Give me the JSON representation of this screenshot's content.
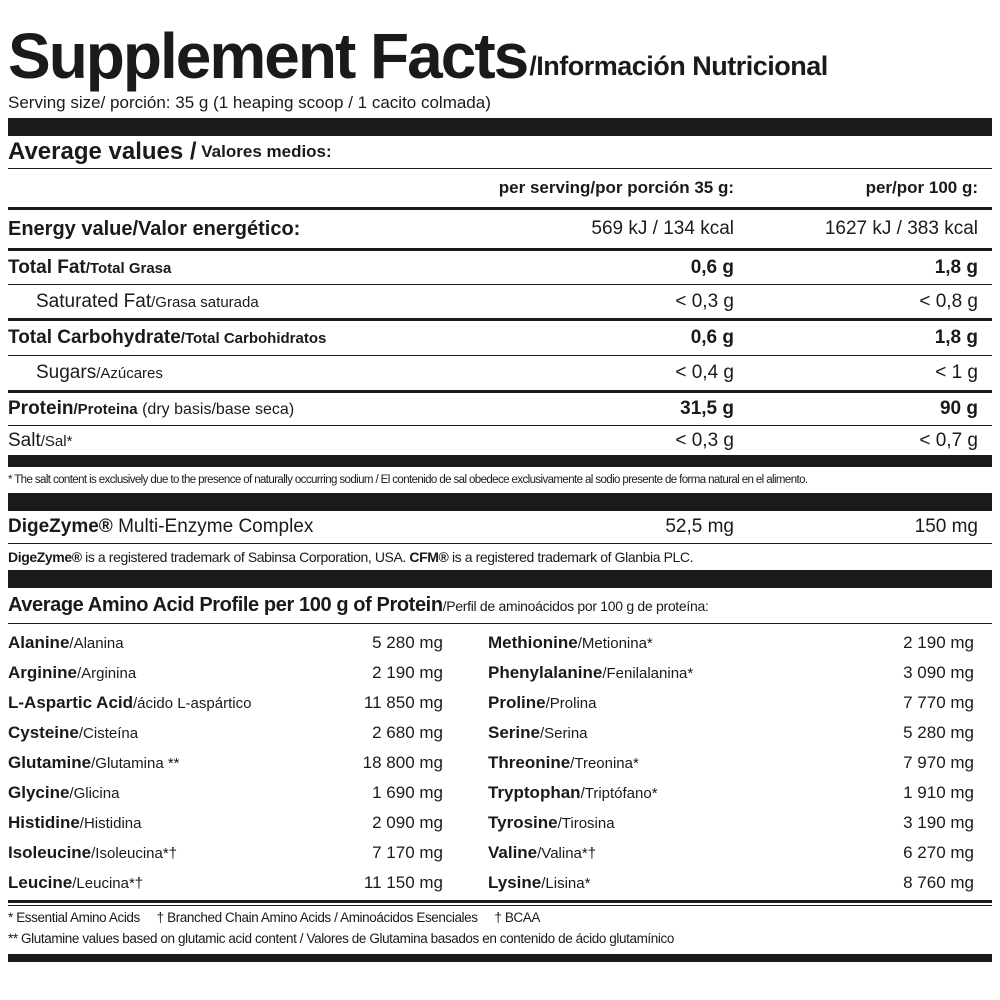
{
  "header": {
    "title": "Supplement Facts",
    "subtitle": "/Información Nutricional",
    "serving": "Serving size/ porción: 35 g (1 heaping scoop / 1 cacito colmada)"
  },
  "average": {
    "title": "Average values /",
    "title_es": " Valores medios:",
    "col_serving": "per serving/por porción 35 g:",
    "col_100g": "per/por 100 g:",
    "rows": [
      {
        "name": "Energy value/Valor energético:",
        "name_es": "",
        "serving": "569 kJ / 134 kcal",
        "per100": "1627 kJ / 383 kcal"
      },
      {
        "name": "Total Fat",
        "name_es": "/Total Grasa",
        "serving": "0,6 g",
        "per100": "1,8 g"
      },
      {
        "name": "Saturated Fat",
        "name_es": "/Grasa saturada",
        "serving": "< 0,3 g",
        "per100": "< 0,8 g"
      },
      {
        "name": "Total Carbohydrate",
        "name_es": "/Total Carbohidratos",
        "serving": "0,6 g",
        "per100": "1,8 g"
      },
      {
        "name": "Sugars",
        "name_es": "/Azúcares",
        "serving": "< 0,4 g",
        "per100": "< 1 g"
      },
      {
        "name": "Protein",
        "name_es": "/Proteina",
        "extra": " (dry basis/base seca)",
        "serving": "31,5 g",
        "per100": "90 g"
      },
      {
        "name": "Salt",
        "name_es": "/Sal*",
        "serving": "< 0,3 g",
        "per100": "< 0,7 g"
      }
    ],
    "salt_note": "* The salt content is exclusively due to the presence of naturally occurring sodium / El contenido de sal obedece exclusivamente al sodio presente de forma natural en el alimento."
  },
  "enzyme": {
    "brand": "DigeZyme®",
    "name": " Multi-Enzyme Complex",
    "serving": "52,5 mg",
    "per100": "150 mg",
    "trademark_brand": "DigeZyme®",
    "trademark_text1": " is a registered trademark of Sabinsa Corporation, USA. ",
    "trademark_brand2": "CFM®",
    "trademark_text2": " is a registered trademark of Glanbia PLC."
  },
  "amino": {
    "title": "Average Amino Acid Profile per 100 g of Protein",
    "title_es": "/Perfil de aminoácidos por 100 g de proteína:",
    "left": [
      {
        "name": "Alanine",
        "es": "/Alanina",
        "value": "5 280 mg"
      },
      {
        "name": "Arginine",
        "es": "/Arginina",
        "value": "2 190 mg"
      },
      {
        "name": "L-Aspartic Acid",
        "es": "/ácido L-aspártico",
        "value": "11 850 mg"
      },
      {
        "name": "Cysteine",
        "es": "/Cisteína",
        "value": "2 680 mg"
      },
      {
        "name": "Glutamine",
        "es": "/Glutamina **",
        "value": "18 800 mg"
      },
      {
        "name": "Glycine",
        "es": "/Glicina",
        "value": "1 690 mg"
      },
      {
        "name": "Histidine",
        "es": "/Histidina",
        "value": "2 090 mg"
      },
      {
        "name": "Isoleucine",
        "es": "/Isoleucina*†",
        "value": "7 170 mg"
      },
      {
        "name": "Leucine",
        "es": "/Leucina*†",
        "value": "11 150 mg"
      }
    ],
    "right": [
      {
        "name": "Methionine",
        "es": "/Metionina*",
        "value": "2 190 mg"
      },
      {
        "name": "Phenylalanine",
        "es": "/Fenilalanina*",
        "value": "3 090 mg"
      },
      {
        "name": "Proline",
        "es": "/Prolina",
        "value": "7 770 mg"
      },
      {
        "name": "Serine",
        "es": "/Serina",
        "value": "5 280 mg"
      },
      {
        "name": "Threonine",
        "es": "/Treonina*",
        "value": "7 970 mg"
      },
      {
        "name": "Tryptophan",
        "es": "/Triptófano*",
        "value": "1 910 mg"
      },
      {
        "name": "Tyrosine",
        "es": "/Tirosina",
        "value": "3 190 mg"
      },
      {
        "name": "Valine",
        "es": "/Valina*†",
        "value": "6 270 mg"
      },
      {
        "name": "Lysine",
        "es": "/Lisina*",
        "value": "8 760 mg"
      }
    ],
    "note1": "* Essential Amino Acids     † Branched Chain Amino Acids / Aminoácidos Esenciales     † BCAA",
    "note2": "** Glutamine values based on glutamic acid content / Valores de Glutamina basados en contenido de ácido glutamínico"
  }
}
